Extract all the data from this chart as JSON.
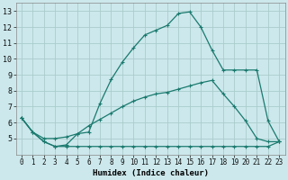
{
  "xlabel": "Humidex (Indice chaleur)",
  "background_color": "#cce8ec",
  "grid_color": "#aacccc",
  "line_color": "#1a7a6e",
  "xlim": [
    -0.5,
    23.5
  ],
  "ylim": [
    4.0,
    13.5
  ],
  "x_ticks": [
    0,
    1,
    2,
    3,
    4,
    5,
    6,
    7,
    8,
    9,
    10,
    11,
    12,
    13,
    14,
    15,
    16,
    17,
    18,
    19,
    20,
    21,
    22,
    23
  ],
  "y_ticks": [
    5,
    6,
    7,
    8,
    9,
    10,
    11,
    12,
    13
  ],
  "line1_x": [
    0,
    1,
    2,
    3,
    4,
    5,
    6,
    7,
    8,
    9,
    10,
    11,
    12,
    13,
    14,
    15,
    16,
    17,
    18,
    19,
    20,
    21,
    22,
    23
  ],
  "line1_y": [
    6.3,
    5.4,
    4.8,
    4.5,
    4.6,
    5.3,
    5.4,
    7.2,
    8.7,
    9.8,
    10.7,
    11.5,
    11.8,
    12.1,
    12.85,
    12.95,
    12.0,
    10.55,
    9.3,
    9.3,
    9.3,
    9.3,
    6.1,
    4.8
  ],
  "line2_x": [
    0,
    1,
    2,
    3,
    4,
    5,
    6,
    7,
    8,
    9,
    10,
    11,
    12,
    13,
    14,
    15,
    16,
    17,
    18,
    19,
    20,
    21,
    22,
    23
  ],
  "line2_y": [
    6.3,
    5.4,
    5.0,
    5.0,
    5.1,
    5.3,
    5.8,
    6.2,
    6.6,
    7.0,
    7.35,
    7.6,
    7.8,
    7.9,
    8.1,
    8.3,
    8.5,
    8.65,
    7.8,
    7.0,
    6.1,
    5.0,
    4.8,
    4.8
  ],
  "line3_x": [
    0,
    1,
    2,
    3,
    4,
    5,
    6,
    7,
    8,
    9,
    10,
    11,
    12,
    13,
    14,
    15,
    16,
    17,
    18,
    19,
    20,
    21,
    22,
    23
  ],
  "line3_y": [
    6.3,
    5.4,
    4.8,
    4.5,
    4.5,
    4.5,
    4.5,
    4.5,
    4.5,
    4.5,
    4.5,
    4.5,
    4.5,
    4.5,
    4.5,
    4.5,
    4.5,
    4.5,
    4.5,
    4.5,
    4.5,
    4.5,
    4.5,
    4.8
  ],
  "tick_fontsize": 5.5,
  "xlabel_fontsize": 6.5
}
